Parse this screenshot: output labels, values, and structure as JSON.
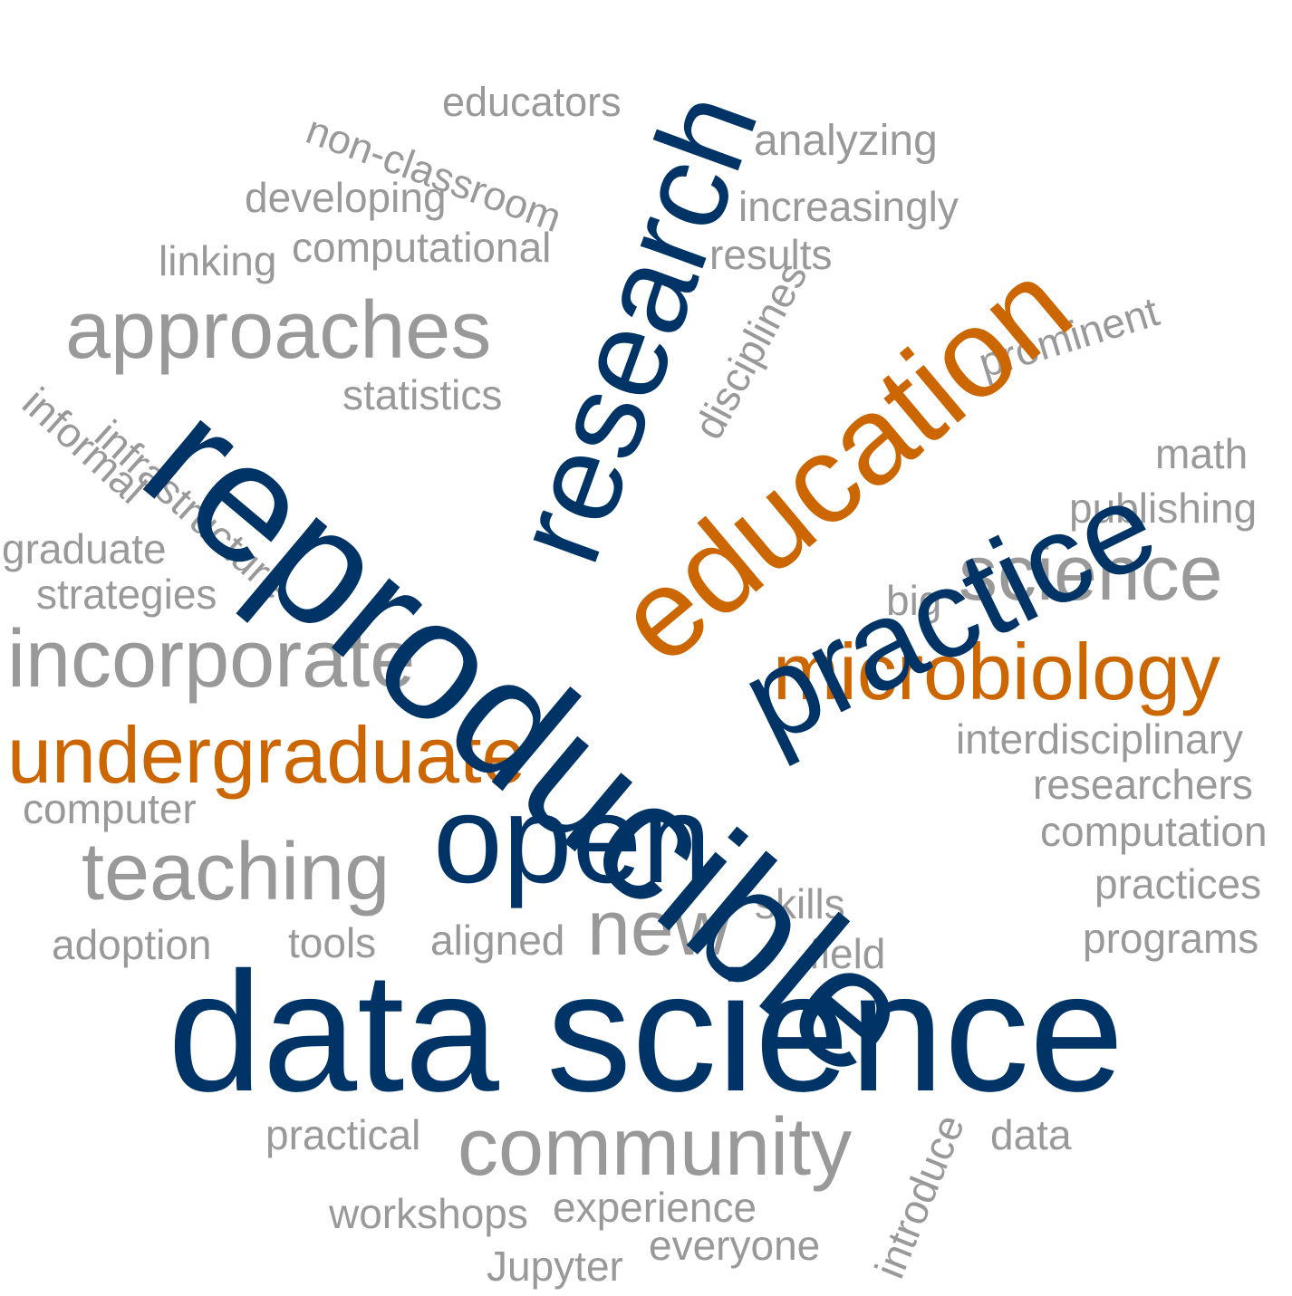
{
  "colors": {
    "navy": "#003366",
    "orange": "#cc6600",
    "gray": "#999999"
  },
  "words": {
    "educators": "educators",
    "non_classroom": "non-classroom",
    "analyzing": "analyzing",
    "research": "research",
    "developing": "developing",
    "increasingly": "increasingly",
    "education": "education",
    "linking": "linking",
    "computational": "computational",
    "results": "results",
    "approaches": "approaches",
    "disciplines": "disciplines",
    "prominent": "prominent",
    "statistics": "statistics",
    "reproducible": "reproducible",
    "practice": "practice",
    "informal": "informal",
    "infrastructure": "infrastructure",
    "math": "math",
    "publishing": "publishing",
    "graduate": "graduate",
    "strategies": "strategies",
    "science": "science",
    "big": "big",
    "incorporate": "incorporate",
    "microbiology": "microbiology",
    "undergraduate": "undergraduate",
    "interdisciplinary": "interdisciplinary",
    "researchers": "researchers",
    "computer": "computer",
    "open": "open",
    "computation": "computation",
    "teaching": "teaching",
    "practices": "practices",
    "new": "new",
    "skills": "skills",
    "programs": "programs",
    "adoption": "adoption",
    "tools": "tools",
    "aligned": "aligned",
    "field": "field",
    "data_science": "data science",
    "practical": "practical",
    "data": "data",
    "community": "community",
    "introduce": "introduce",
    "workshops": "workshops",
    "experience": "experience",
    "everyone": "everyone",
    "jupyter": "Jupyter"
  }
}
